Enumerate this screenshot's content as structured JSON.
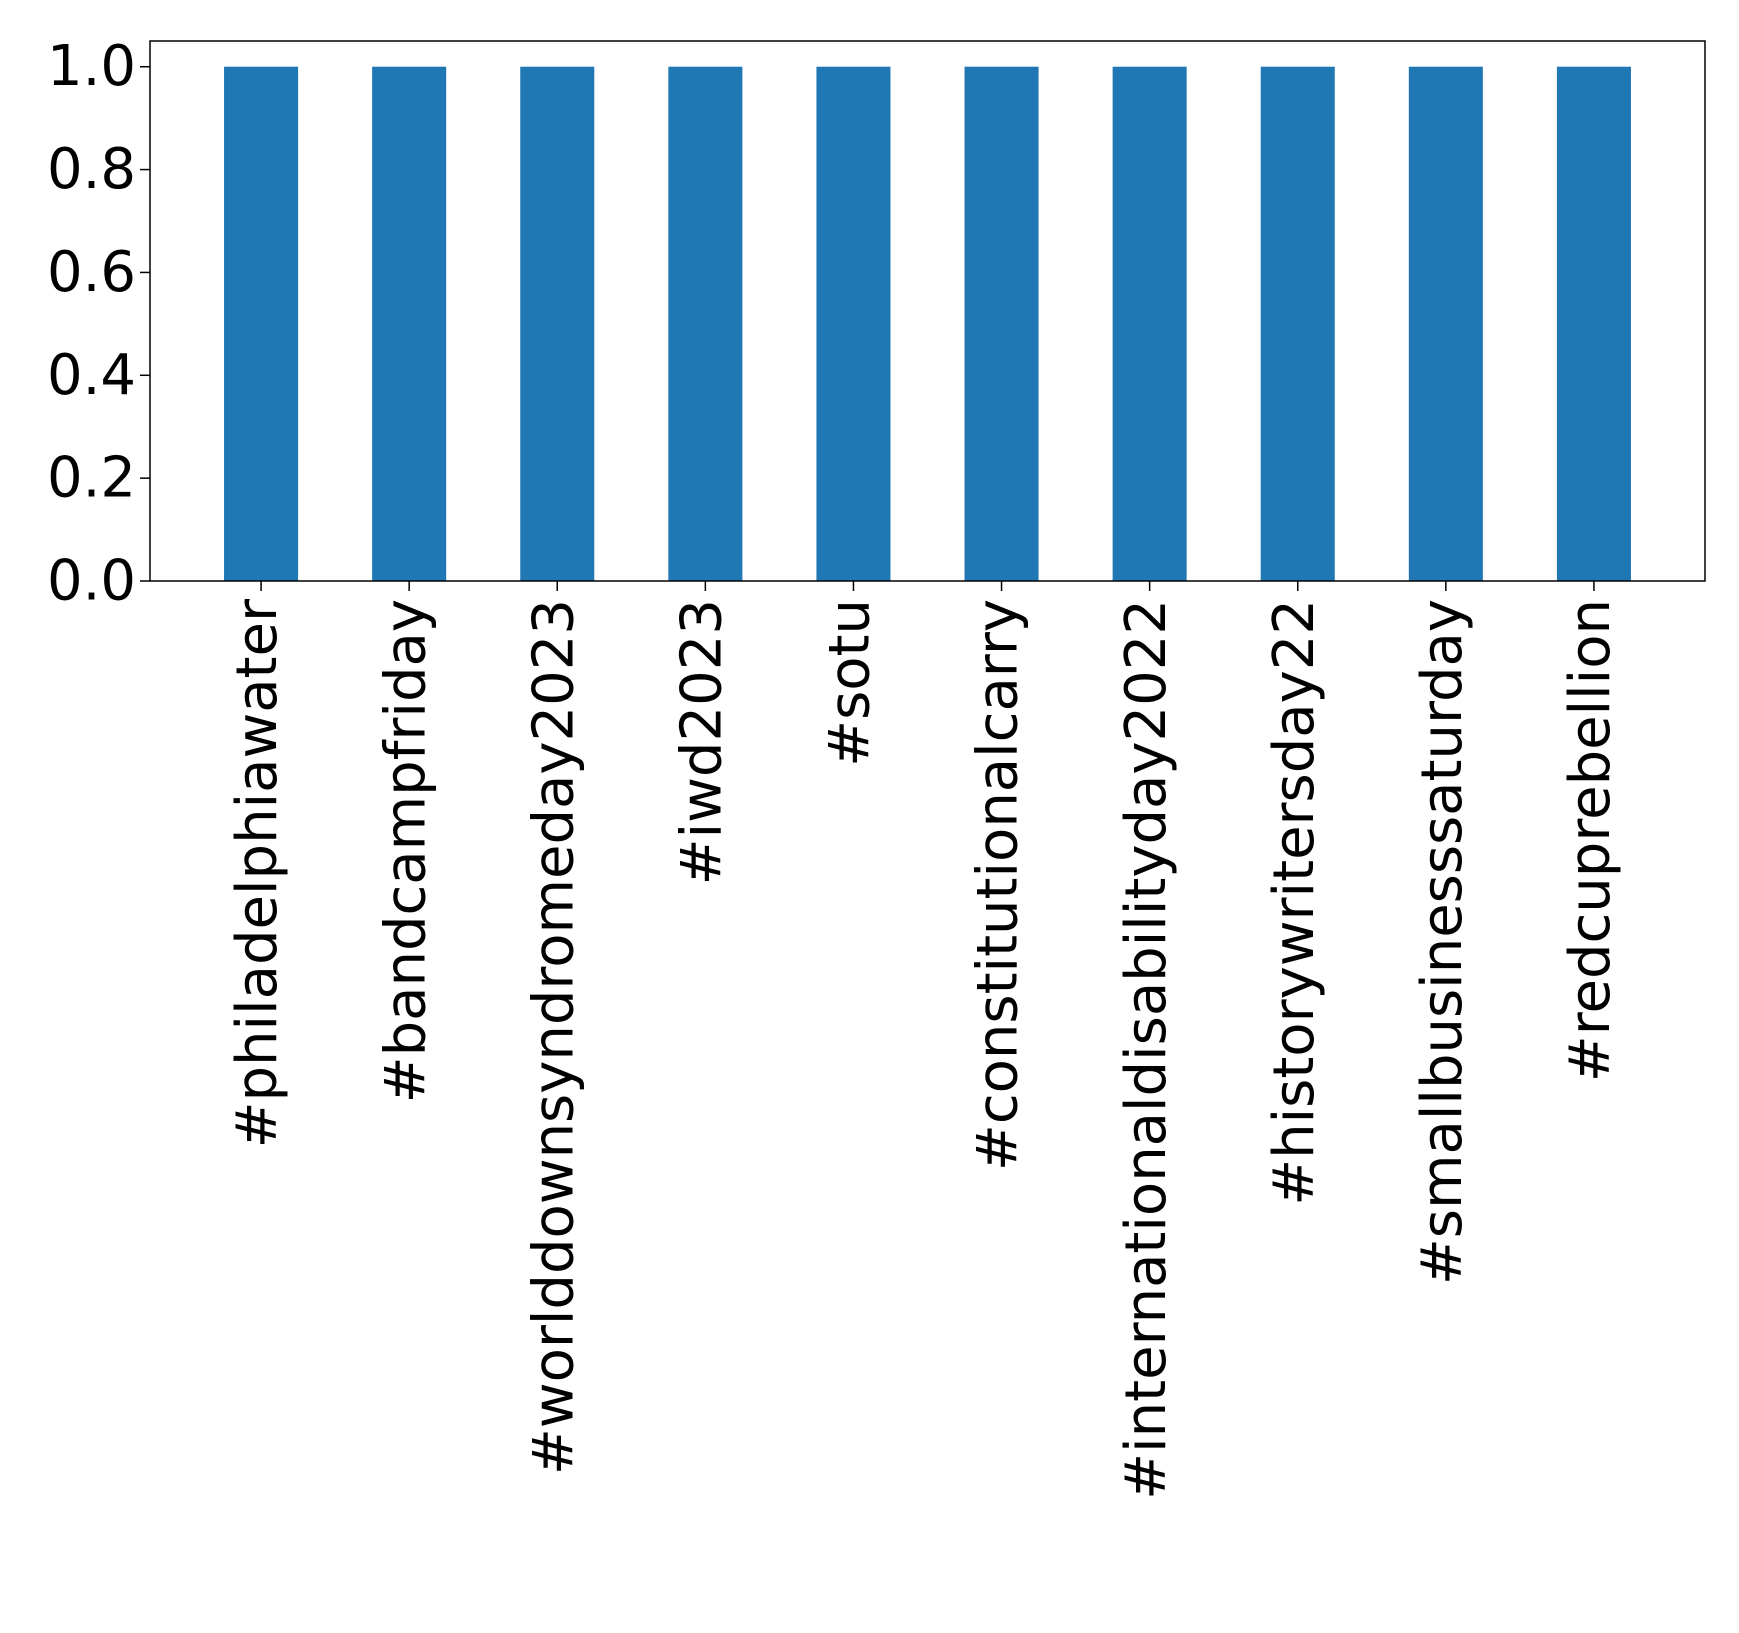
{
  "chart_data": {
    "type": "bar",
    "title": "",
    "xlabel": "",
    "ylabel": "",
    "categories": [
      "#philadelphiawater",
      "#bandcampfriday",
      "#worlddownsyndromeday2023",
      "#iwd2023",
      "#sotu",
      "#constitutionalcarry",
      "#internationaldisabilityday2022",
      "#historywritersday22",
      "#smallbusinesssaturday",
      "#redcuprebellion"
    ],
    "values": [
      1.0,
      1.0,
      1.0,
      1.0,
      1.0,
      1.0,
      1.0,
      1.0,
      1.0,
      1.0
    ],
    "ylim": [
      0,
      1.05
    ],
    "yticks": [
      "0.0",
      "0.2",
      "0.4",
      "0.6",
      "0.8",
      "1.0"
    ],
    "grid": false,
    "legend": "none",
    "bar_color": "#1f77b4"
  }
}
